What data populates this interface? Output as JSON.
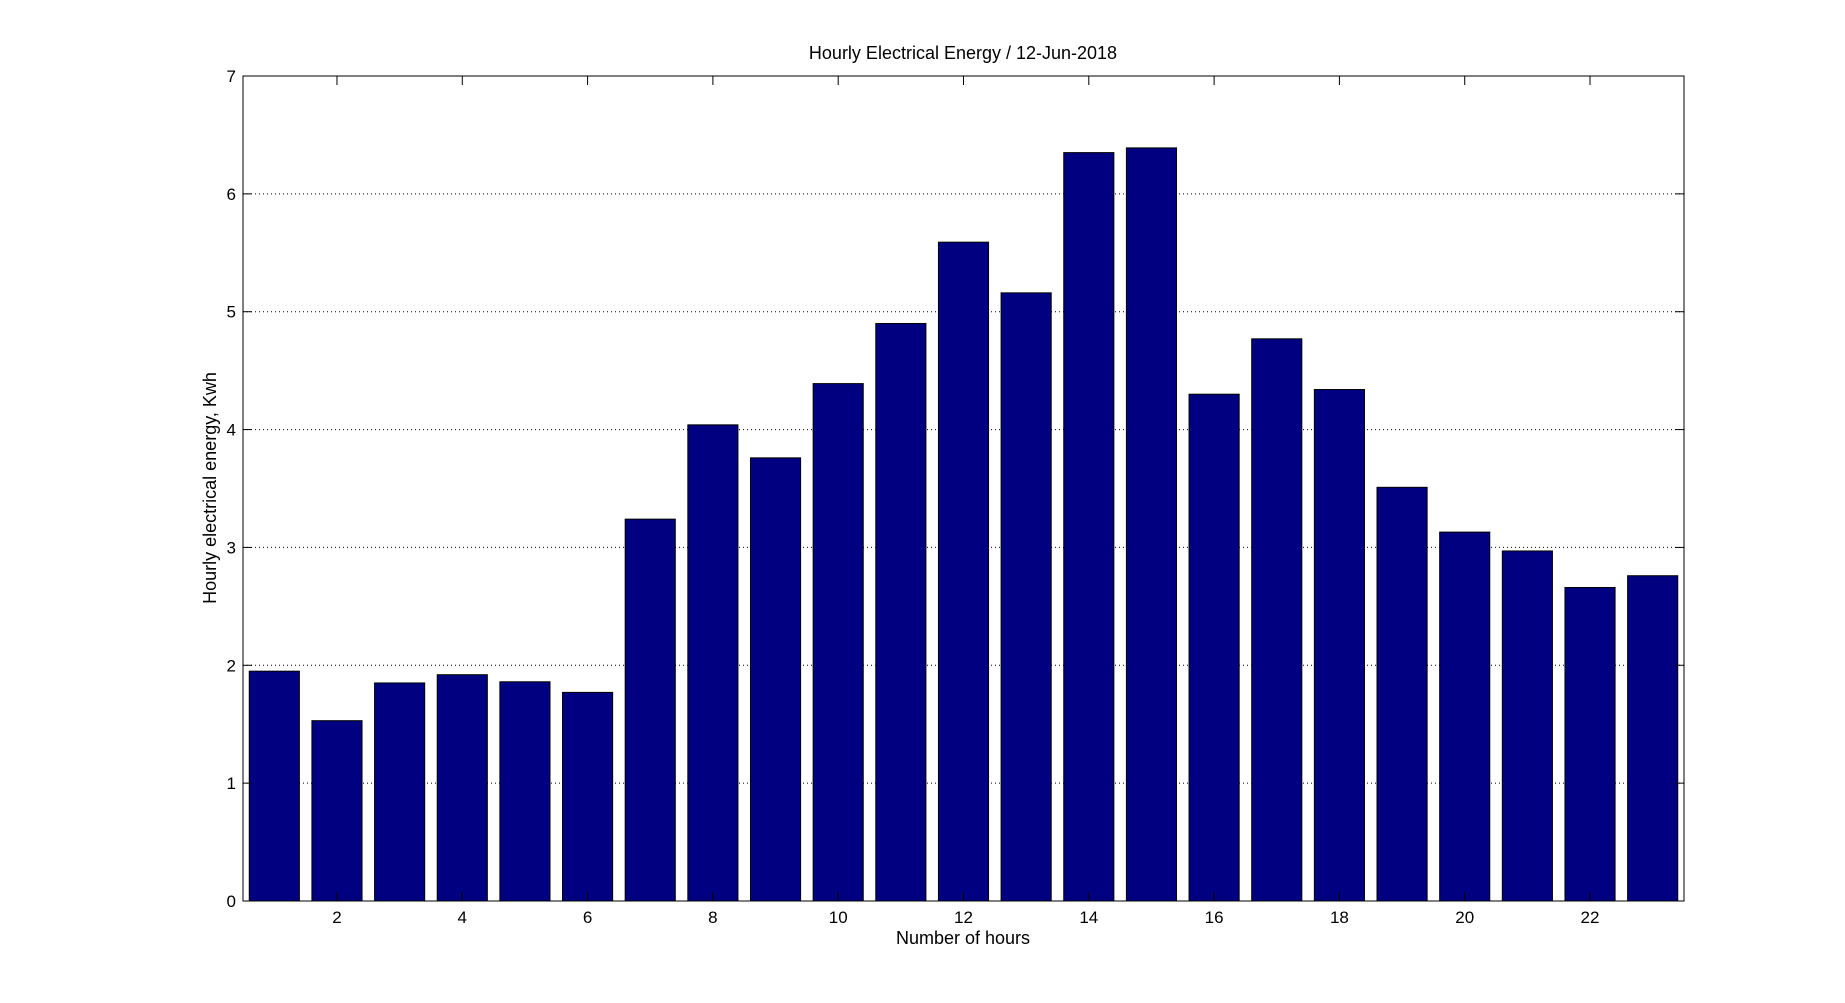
{
  "chart_data": {
    "type": "bar",
    "title": "Hourly Electrical Energy / 12-Jun-2018",
    "xlabel": "Number of hours",
    "ylabel": "Hourly electrical energy, Kwh",
    "x": [
      1,
      2,
      3,
      4,
      5,
      6,
      7,
      8,
      9,
      10,
      11,
      12,
      13,
      14,
      15,
      16,
      17,
      18,
      19,
      20,
      21,
      22,
      23
    ],
    "values": [
      1.95,
      1.53,
      1.85,
      1.92,
      1.86,
      1.77,
      3.24,
      4.04,
      3.76,
      4.39,
      4.9,
      5.59,
      5.16,
      6.35,
      6.39,
      4.3,
      4.77,
      4.34,
      3.51,
      3.13,
      2.97,
      2.66,
      2.76
    ],
    "xlim": [
      0.5,
      23.5
    ],
    "ylim": [
      0,
      7
    ],
    "xticks": [
      2,
      4,
      6,
      8,
      10,
      12,
      14,
      16,
      18,
      20,
      22
    ],
    "yticks": [
      0,
      1,
      2,
      3,
      4,
      5,
      6,
      7
    ],
    "grid": "y-dotted",
    "bar_color": "#000080"
  }
}
